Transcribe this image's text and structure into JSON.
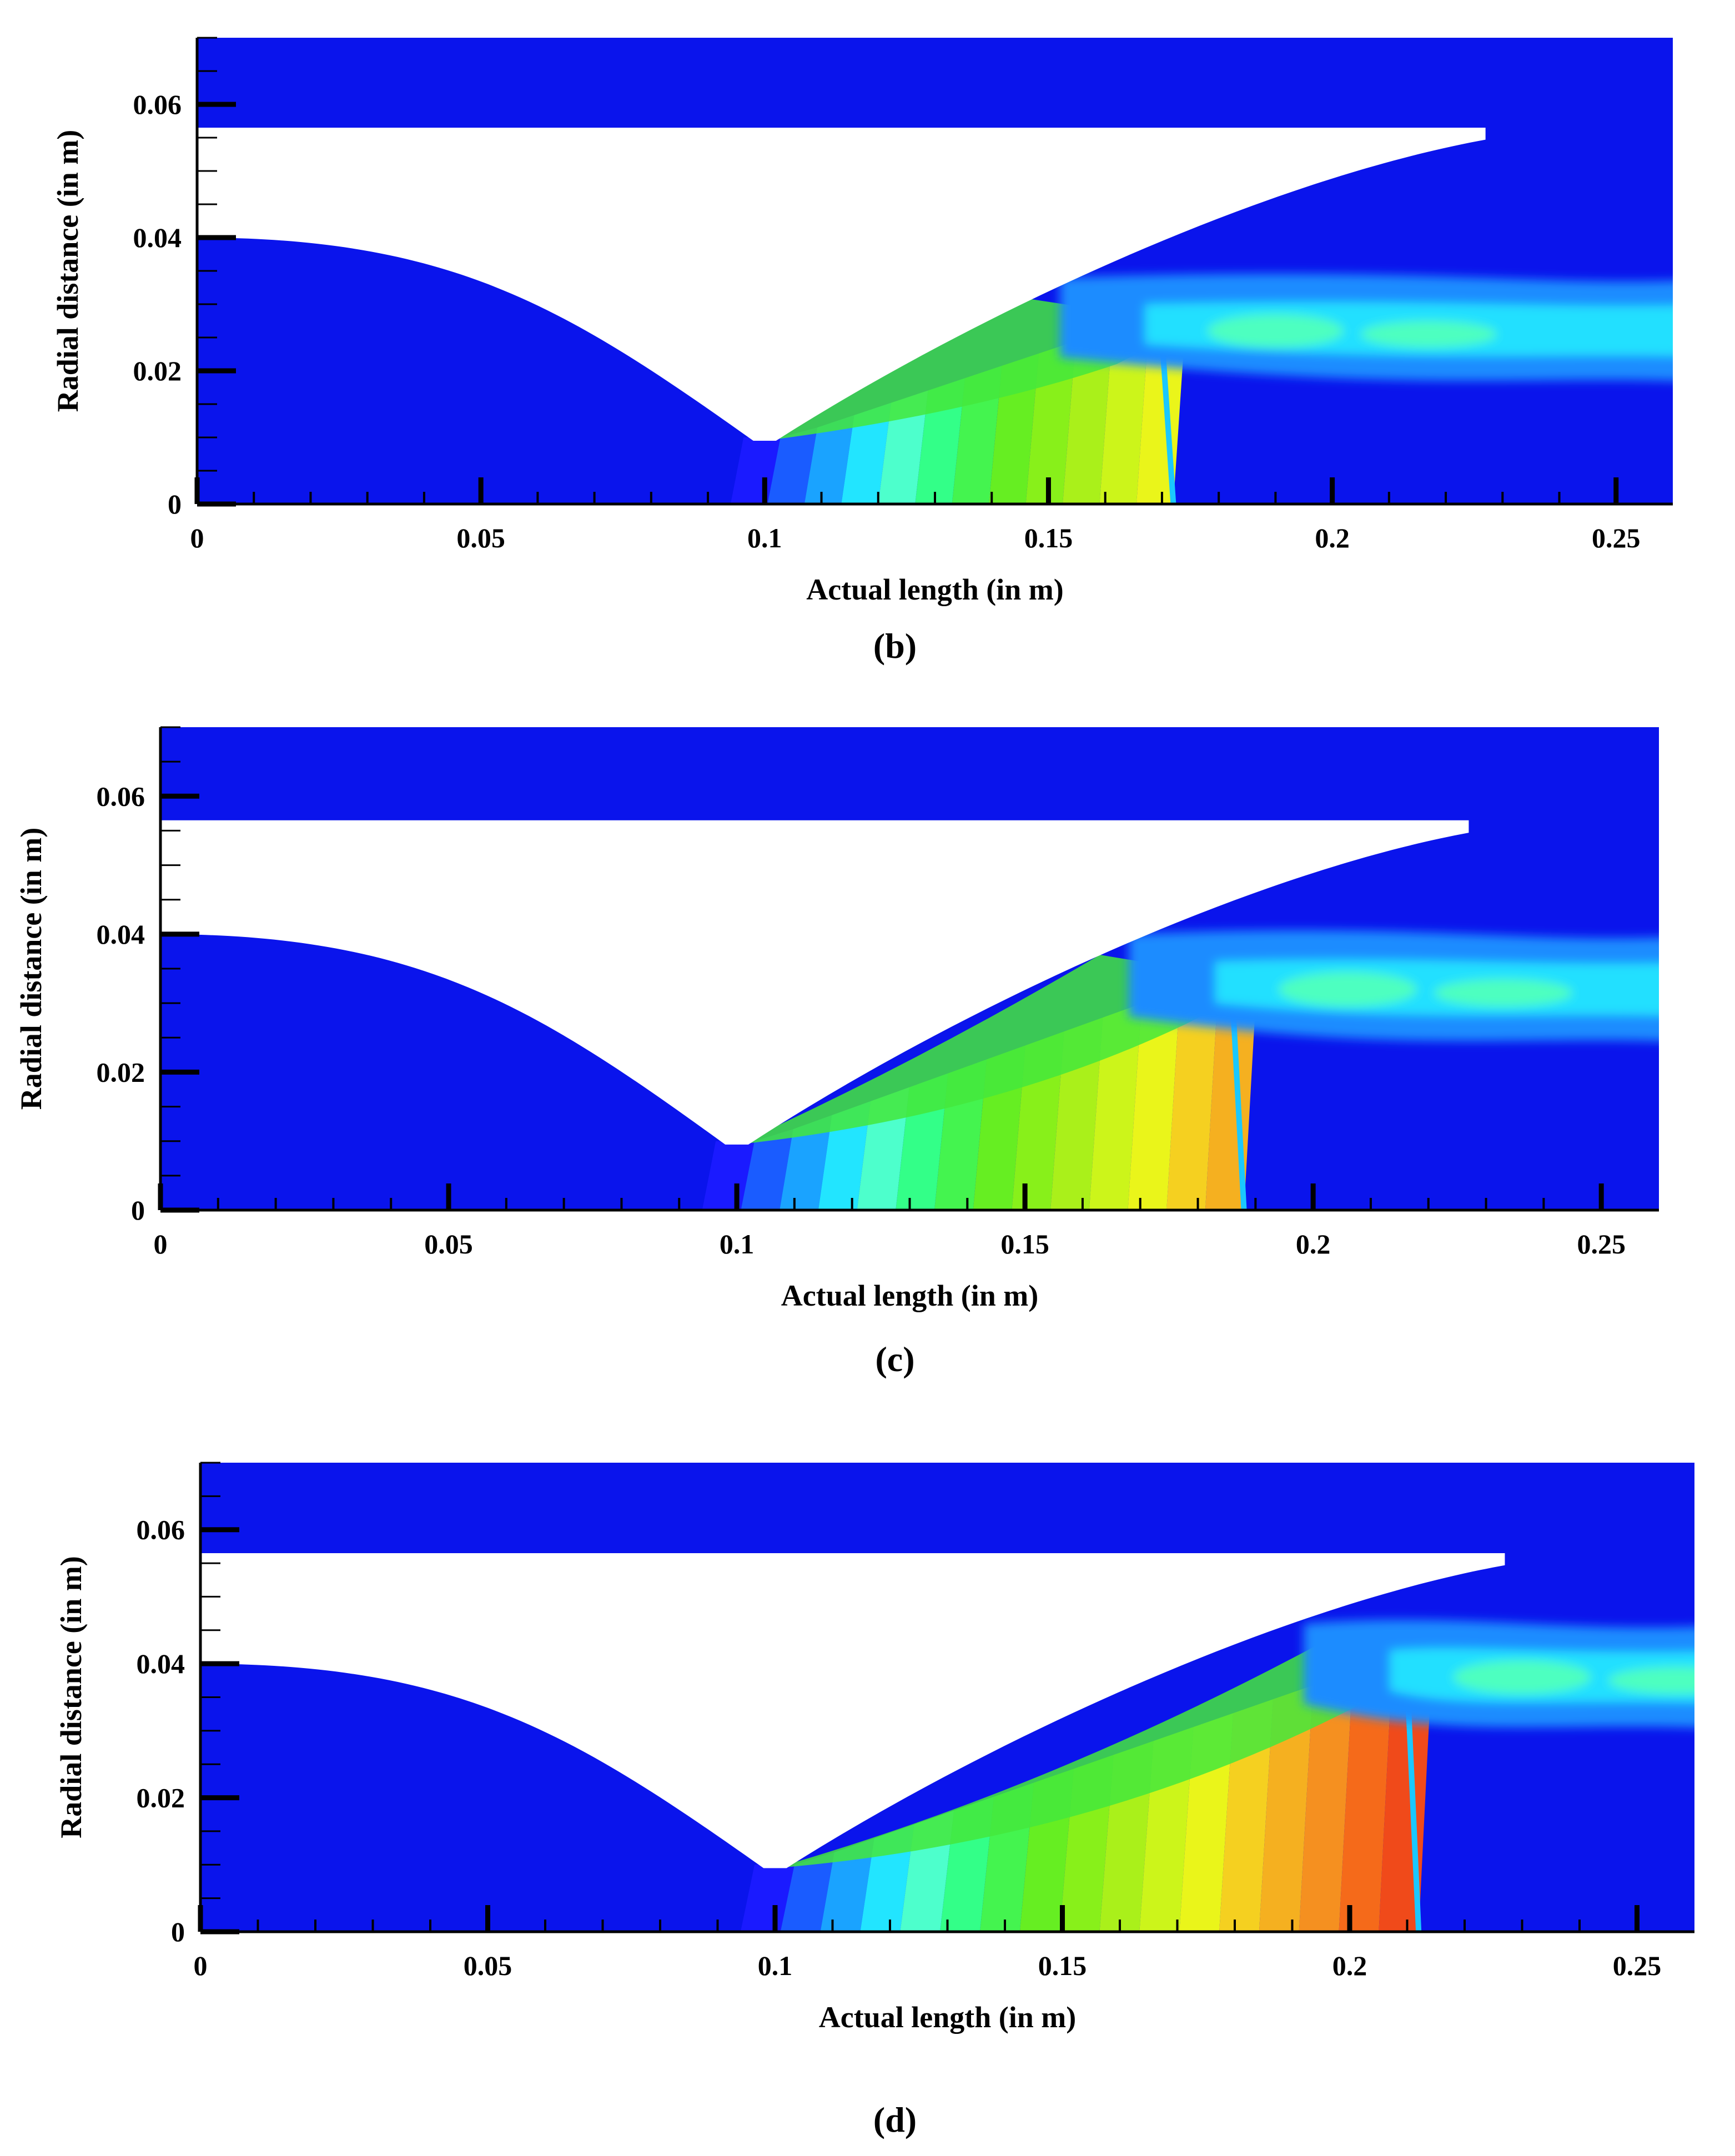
{
  "figure": {
    "panels": [
      {
        "label": "(b)",
        "xlabel": "Actual length (in m)",
        "ylabel": "Radial distance (in m)"
      },
      {
        "label": "(c)",
        "xlabel": "Actual length (in m)",
        "ylabel": "Radial distance (in m)"
      },
      {
        "label": "(d)",
        "xlabel": "Actual length (in m)",
        "ylabel": "Radial distance (in m)"
      }
    ]
  },
  "chart_data": [
    {
      "type": "heatmap",
      "title": "(b)",
      "xlabel": "Actual length (in m)",
      "ylabel": "Radial distance (in m)",
      "xlim": [
        0,
        0.26
      ],
      "ylim": [
        0,
        0.07
      ],
      "x_ticks": [
        0,
        0.05,
        0.1,
        0.15,
        0.2,
        0.25
      ],
      "x_tick_labels": [
        "0",
        "0.05",
        "0.1",
        "0.15",
        "0.2",
        "0.25"
      ],
      "y_ticks": [
        0,
        0.02,
        0.04,
        0.06
      ],
      "y_tick_labels": [
        "0",
        "0.02",
        "0.04",
        "0.06"
      ],
      "grid": false,
      "legend": "none",
      "nozzle": {
        "centerbody_radius_at_inlet": 0.04,
        "throat_x": 0.1,
        "throat_radius": 0.0095,
        "cowl_inner_radius": 0.0565,
        "cowl_tip_x": 0.227
      },
      "shock": {
        "mach_disk_x": 0.172,
        "mach_disk_top_y": 0.025,
        "reflection_x": 0.145,
        "plume_core_y": 0.026
      },
      "color_levels": [
        "#1a1aff",
        "#1a5cff",
        "#1aa3ff",
        "#22e5ff",
        "#4dffcc",
        "#33ff88",
        "#44f44f",
        "#66ee22",
        "#88f01a",
        "#aaf01a",
        "#ccf51a",
        "#eaf51a"
      ],
      "colors": {
        "background": "#0a14ec",
        "body": "#ffffff"
      }
    },
    {
      "type": "heatmap",
      "title": "(c)",
      "xlabel": "Actual length (in m)",
      "ylabel": "Radial distance (in m)",
      "xlim": [
        0,
        0.26
      ],
      "ylim": [
        0,
        0.07
      ],
      "x_ticks": [
        0,
        0.05,
        0.1,
        0.15,
        0.2,
        0.25
      ],
      "x_tick_labels": [
        "0",
        "0.05",
        "0.1",
        "0.15",
        "0.2",
        "0.25"
      ],
      "y_ticks": [
        0,
        0.02,
        0.04,
        0.06
      ],
      "y_tick_labels": [
        "0",
        "0.02",
        "0.04",
        "0.06"
      ],
      "grid": false,
      "legend": "none",
      "nozzle": {
        "centerbody_radius_at_inlet": 0.04,
        "throat_x": 0.1,
        "throat_radius": 0.0095,
        "cowl_inner_radius": 0.0565,
        "cowl_tip_x": 0.227
      },
      "shock": {
        "mach_disk_x": 0.188,
        "mach_disk_top_y": 0.031,
        "reflection_x": 0.163,
        "plume_core_y": 0.032
      },
      "color_levels": [
        "#1a1aff",
        "#1a5cff",
        "#1aa3ff",
        "#22e5ff",
        "#4dffcc",
        "#33ff88",
        "#44f44f",
        "#66ee22",
        "#88f01a",
        "#aaf01a",
        "#ccf51a",
        "#eaf51a",
        "#f5d020",
        "#f5b020"
      ],
      "colors": {
        "background": "#0a14ec",
        "body": "#ffffff"
      }
    },
    {
      "type": "heatmap",
      "title": "(d)",
      "xlabel": "Actual length (in m)",
      "ylabel": "Radial distance (in m)",
      "xlim": [
        0,
        0.26
      ],
      "ylim": [
        0,
        0.07
      ],
      "x_ticks": [
        0,
        0.05,
        0.1,
        0.15,
        0.2,
        0.25
      ],
      "x_tick_labels": [
        "0",
        "0.05",
        "0.1",
        "0.15",
        "0.2",
        "0.25"
      ],
      "y_ticks": [
        0,
        0.02,
        0.04,
        0.06
      ],
      "y_tick_labels": [
        "0",
        "0.02",
        "0.04",
        "0.06"
      ],
      "grid": false,
      "legend": "none",
      "nozzle": {
        "centerbody_radius_at_inlet": 0.04,
        "throat_x": 0.1,
        "throat_radius": 0.0095,
        "cowl_inner_radius": 0.0565,
        "cowl_tip_x": 0.227
      },
      "shock": {
        "mach_disk_x": 0.212,
        "mach_disk_top_y": 0.038,
        "reflection_x": 0.197,
        "plume_core_y": 0.038
      },
      "color_levels": [
        "#1a1aff",
        "#1a5cff",
        "#1aa3ff",
        "#22e5ff",
        "#4dffcc",
        "#33ff88",
        "#44f44f",
        "#66ee22",
        "#88f01a",
        "#aaf01a",
        "#ccf51a",
        "#eaf51a",
        "#f5d020",
        "#f5b020",
        "#f59020",
        "#f56a1a",
        "#f04a1a"
      ],
      "colors": {
        "background": "#0a14ec",
        "body": "#ffffff"
      }
    }
  ]
}
